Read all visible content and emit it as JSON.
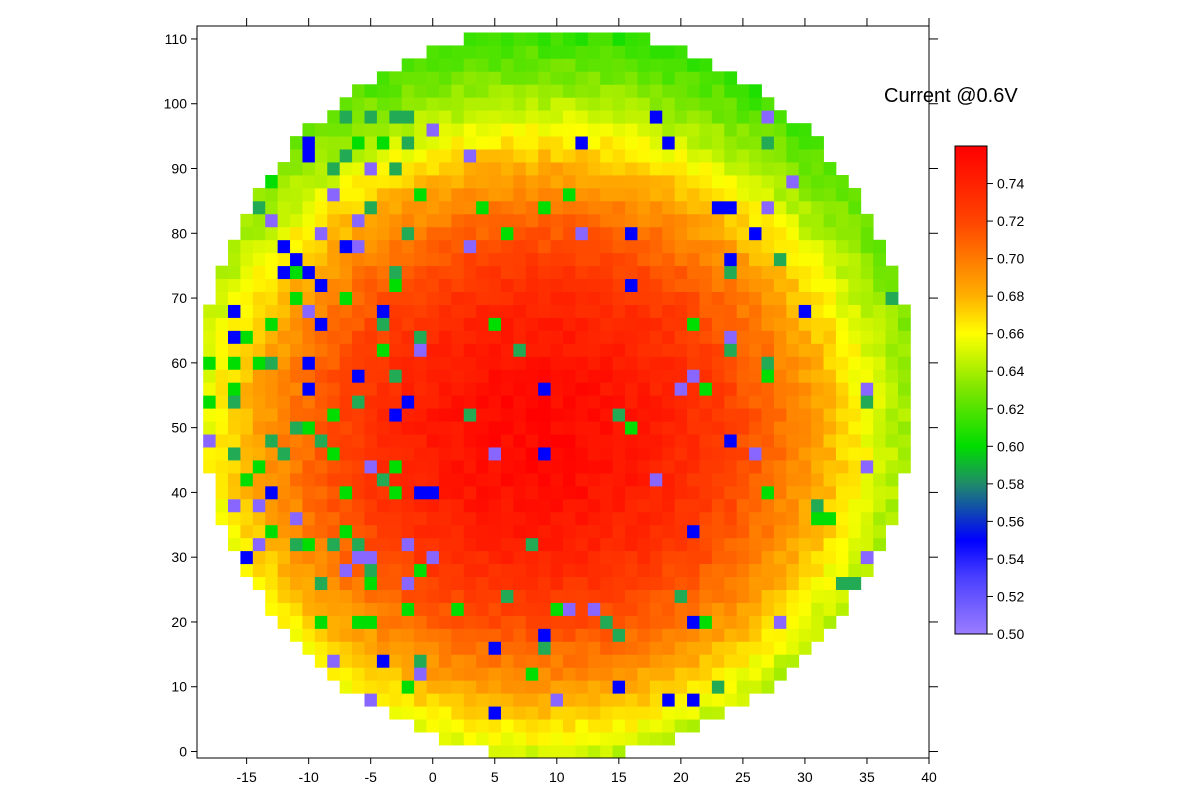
{
  "chart_data": {
    "type": "heatmap",
    "title": "Current @0.6V",
    "xlabel": "",
    "ylabel": "",
    "xlim": [
      -19,
      40
    ],
    "ylim": [
      -1,
      112
    ],
    "x_ticks": [
      -15,
      -10,
      -5,
      0,
      5,
      10,
      15,
      20,
      25,
      30,
      35,
      40
    ],
    "y_ticks": [
      0,
      10,
      20,
      30,
      40,
      50,
      60,
      70,
      80,
      90,
      100,
      110
    ],
    "grid": false,
    "wafer_map": {
      "shape": "circle",
      "center": [
        10,
        55.5
      ],
      "radius_x": 28.8,
      "radius_y": 56.5,
      "x_step": 1,
      "y_step": 2,
      "peak": [
        8.5,
        49
      ],
      "peak_value": 0.755,
      "outlier_colors": [
        "#8866ff",
        "#0000ff",
        "#00dd00",
        "#22aa55"
      ]
    },
    "colorbar": {
      "range": [
        0.5,
        0.76
      ],
      "ticks": [
        "0.50",
        "0.52",
        "0.54",
        "0.56",
        "0.58",
        "0.60",
        "0.62",
        "0.64",
        "0.66",
        "0.68",
        "0.70",
        "0.72",
        "0.74"
      ],
      "stops": [
        {
          "v": 0.5,
          "color": "#9b7dff"
        },
        {
          "v": 0.53,
          "color": "#4a40ff"
        },
        {
          "v": 0.55,
          "color": "#0000ff"
        },
        {
          "v": 0.58,
          "color": "#1f8a6a"
        },
        {
          "v": 0.6,
          "color": "#00dd00"
        },
        {
          "v": 0.63,
          "color": "#7ce600"
        },
        {
          "v": 0.66,
          "color": "#ffff00"
        },
        {
          "v": 0.68,
          "color": "#ffb000"
        },
        {
          "v": 0.7,
          "color": "#ff7a00"
        },
        {
          "v": 0.72,
          "color": "#ff4400"
        },
        {
          "v": 0.76,
          "color": "#ff0000"
        }
      ]
    }
  }
}
